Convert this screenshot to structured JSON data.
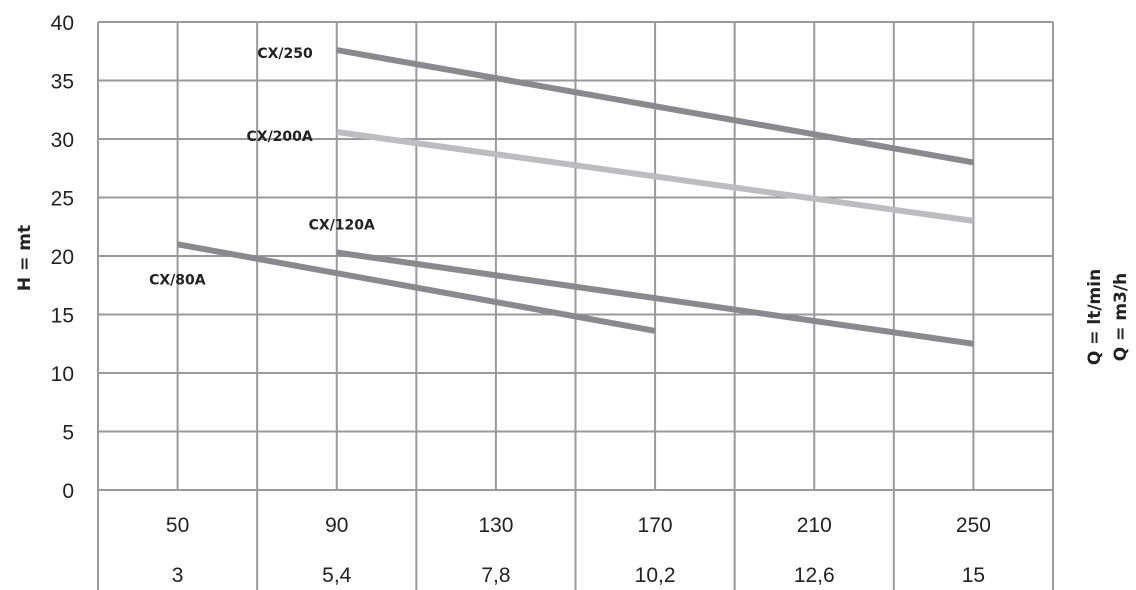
{
  "chart_data": {
    "type": "line",
    "ylabel": "H = mt",
    "xlabel_lines": [
      "Q = lt/min",
      "Q = m3/h"
    ],
    "ylim": [
      0,
      40
    ],
    "yticks": [
      0,
      5,
      10,
      15,
      20,
      25,
      30,
      35,
      40
    ],
    "x_categories_lt_min": [
      "50",
      "90",
      "130",
      "170",
      "210",
      "250"
    ],
    "x_categories_m3h": [
      "3",
      "5,4",
      "7,8",
      "10,2",
      "12,6",
      "15"
    ],
    "x_values_lt_min": [
      50,
      90,
      130,
      170,
      210,
      250
    ],
    "grid": true,
    "series": [
      {
        "name": "CX/250",
        "color": "#8a8a8e",
        "points": [
          [
            90,
            37.6
          ],
          [
            250,
            28.0
          ]
        ]
      },
      {
        "name": "CX/200A",
        "color": "#bdbdbf",
        "points": [
          [
            90,
            30.6
          ],
          [
            250,
            23.0
          ]
        ]
      },
      {
        "name": "CX/120A",
        "color": "#8a8a8e",
        "points": [
          [
            90,
            20.3
          ],
          [
            250,
            12.5
          ]
        ]
      },
      {
        "name": "CX/80A",
        "color": "#8a8a8e",
        "points": [
          [
            50,
            21.0
          ],
          [
            170,
            13.6
          ]
        ]
      }
    ]
  }
}
